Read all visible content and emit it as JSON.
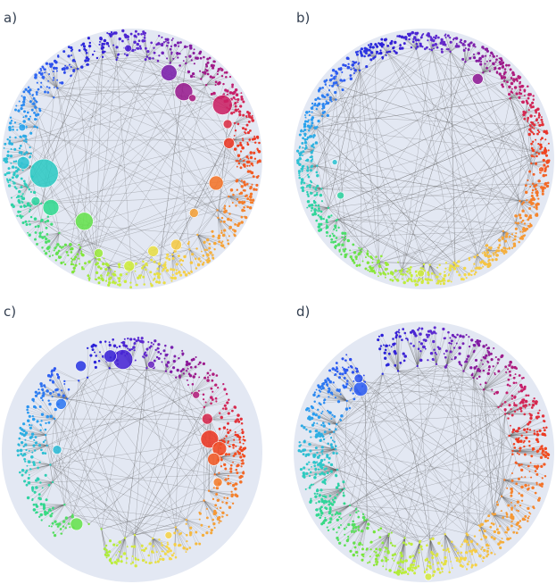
{
  "panels": [
    {
      "id": "a",
      "label": "a)",
      "hubs": 22
    },
    {
      "id": "b",
      "label": "b)",
      "hubs": 5
    },
    {
      "id": "c",
      "label": "c)",
      "hubs": 14
    },
    {
      "id": "d",
      "label": "d)",
      "hubs": 3
    }
  ],
  "colors": {
    "disk": "#e3e8f3",
    "edge": "#5a5a5a",
    "palette": [
      "#2a1fd8",
      "#5f2bd0",
      "#8a1a9a",
      "#c81f6a",
      "#ef3a1e",
      "#f47a2a",
      "#f5a53a",
      "#f5d84a",
      "#c6ee3c",
      "#76e43a",
      "#31d98a",
      "#2ec9c9",
      "#2b9ff0",
      "#2f5ef2"
    ]
  }
}
